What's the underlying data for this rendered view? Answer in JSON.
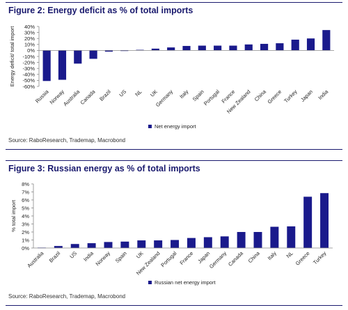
{
  "figure1": {
    "title": "Figure 2: Energy deficit as % of total imports",
    "source": "Source: RaboResearch, Trademap, Macrobond",
    "chart_data": {
      "type": "bar",
      "title": "Figure 2: Energy deficit as % of total imports",
      "xlabel": "",
      "ylabel": "Energy deficit/ total import",
      "ylim": [
        -60,
        40
      ],
      "yticks": [
        -60,
        -50,
        -40,
        -30,
        -20,
        -10,
        0,
        10,
        20,
        30,
        40
      ],
      "yticklabels": [
        "-60%",
        "-50%",
        "-40%",
        "-30%",
        "-20%",
        "-10%",
        "0%",
        "10%",
        "20%",
        "30%",
        "40%"
      ],
      "categories": [
        "Russia",
        "Norway",
        "Australia",
        "Canada",
        "Brazil",
        "US",
        "NL",
        "UK",
        "Germany",
        "Italy",
        "Spain",
        "Portugal",
        "France",
        "New Zealand",
        "China",
        "Greece",
        "Turkey",
        "Japan",
        "India"
      ],
      "series": [
        {
          "name": "Net energy import",
          "color": "#1a1a8c",
          "values": [
            -51,
            -49,
            -22,
            -14,
            -2,
            -0.5,
            1,
            3,
            5,
            7.5,
            8,
            8,
            8,
            10,
            11,
            12,
            18,
            20,
            34
          ]
        }
      ],
      "grid": false,
      "legend": "bottom-center"
    }
  },
  "figure2": {
    "title": "Figure 3: Russian energy as % of total imports",
    "source": "Source: RaboResearch, Trademap, Macrobond",
    "chart_data": {
      "type": "bar",
      "title": "Figure 3: Russian energy as % of total imports",
      "xlabel": "",
      "ylabel": "% total import",
      "ylim": [
        0,
        8
      ],
      "yticks": [
        0,
        1,
        2,
        3,
        4,
        5,
        6,
        7,
        8
      ],
      "yticklabels": [
        "0%",
        "1%",
        "2%",
        "3%",
        "4%",
        "5%",
        "6%",
        "7%",
        "8%"
      ],
      "categories": [
        "Australia",
        "Brazil",
        "US",
        "India",
        "Norway",
        "Spain",
        "UK",
        "New Zealand",
        "Portugal",
        "France",
        "Japan",
        "Germany",
        "Canada",
        "China",
        "Italy",
        "NL",
        "Greece",
        "Turkey"
      ],
      "series": [
        {
          "name": "Russian net energy import",
          "color": "#1a1a8c",
          "values": [
            0.05,
            0.25,
            0.5,
            0.6,
            0.75,
            0.8,
            0.95,
            0.95,
            1.0,
            1.25,
            1.35,
            1.45,
            2.0,
            2.0,
            2.65,
            2.7,
            6.4,
            6.85
          ]
        }
      ],
      "grid": false,
      "legend": "bottom-center"
    }
  }
}
